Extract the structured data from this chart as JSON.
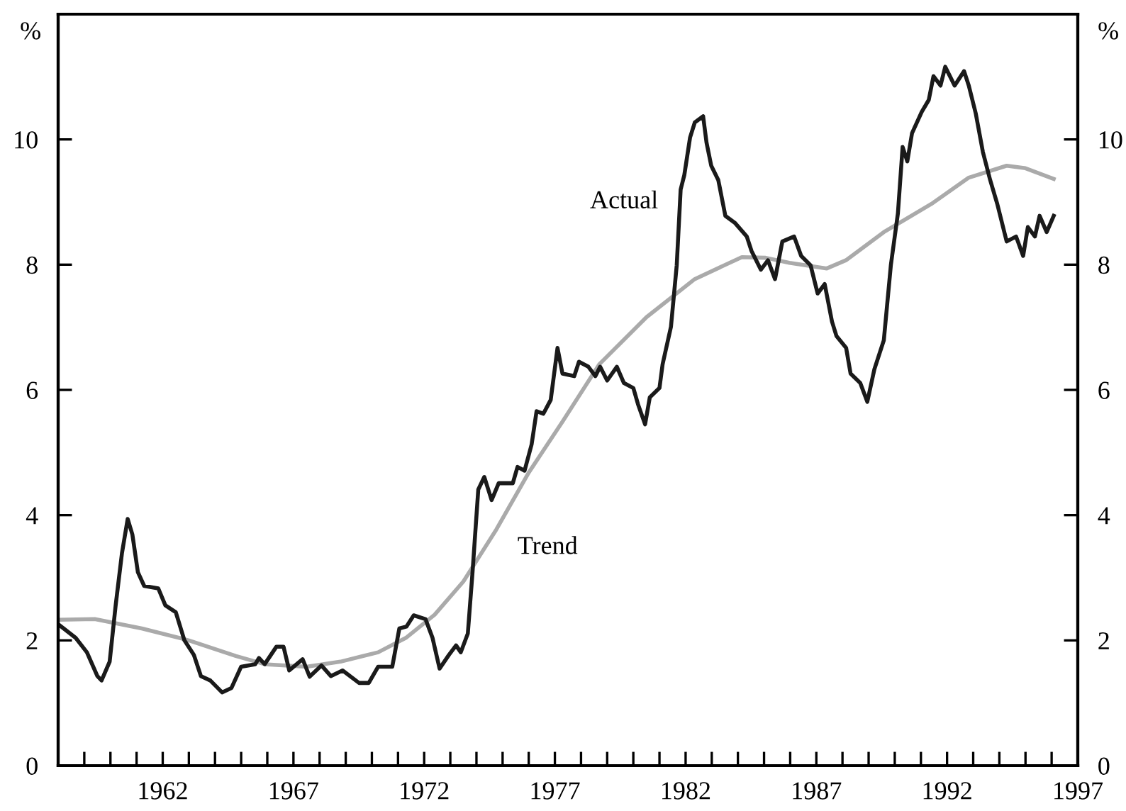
{
  "chart_data": {
    "type": "line",
    "ylabel": "%",
    "y2label": "%",
    "xlim": [
      1958,
      1997
    ],
    "xticks": [
      {
        "value": 1959,
        "label": null
      },
      {
        "value": 1960,
        "label": null
      },
      {
        "value": 1961,
        "label": null
      },
      1962,
      {
        "value": 1963,
        "label": null
      },
      {
        "value": 1964,
        "label": null
      },
      {
        "value": 1965,
        "label": null
      },
      {
        "value": 1966,
        "label": null
      },
      1967,
      {
        "value": 1968,
        "label": null
      },
      {
        "value": 1969,
        "label": null
      },
      {
        "value": 1970,
        "label": null
      },
      {
        "value": 1971,
        "label": null
      },
      1972,
      {
        "value": 1973,
        "label": null
      },
      {
        "value": 1974,
        "label": null
      },
      {
        "value": 1975,
        "label": null
      },
      {
        "value": 1976,
        "label": null
      },
      1977,
      {
        "value": 1978,
        "label": null
      },
      {
        "value": 1979,
        "label": null
      },
      {
        "value": 1980,
        "label": null
      },
      {
        "value": 1981,
        "label": null
      },
      1982,
      {
        "value": 1983,
        "label": null
      },
      {
        "value": 1984,
        "label": null
      },
      {
        "value": 1985,
        "label": null
      },
      {
        "value": 1986,
        "label": null
      },
      1987,
      {
        "value": 1988,
        "label": null
      },
      {
        "value": 1989,
        "label": null
      },
      {
        "value": 1990,
        "label": null
      },
      {
        "value": 1991,
        "label": null
      },
      1992,
      {
        "value": 1993,
        "label": null
      },
      {
        "value": 1994,
        "label": null
      },
      {
        "value": 1995,
        "label": null
      },
      {
        "value": 1996,
        "label": null
      },
      1997
    ],
    "ylim": [
      0,
      12
    ],
    "yticks": [
      0,
      2,
      4,
      6,
      8,
      10
    ],
    "y2lim": [
      0,
      12
    ],
    "y2ticks": [
      0,
      2,
      4,
      6,
      8,
      10
    ],
    "grid": false,
    "legend": false,
    "marker": "none",
    "line_style": "solid",
    "series": [
      {
        "name": "Actual",
        "color": "#1a1a1a",
        "x": [
          1958.0,
          1958.67,
          1959.1,
          1959.5,
          1959.66,
          1959.97,
          1960.2,
          1960.44,
          1960.66,
          1960.84,
          1961.05,
          1961.29,
          1961.83,
          1962.1,
          1962.5,
          1962.83,
          1963.19,
          1963.46,
          1963.82,
          1964.27,
          1964.63,
          1965.0,
          1965.54,
          1965.68,
          1965.9,
          1966.35,
          1966.62,
          1966.84,
          1967.35,
          1967.62,
          1968.07,
          1968.43,
          1968.88,
          1969.51,
          1969.88,
          1970.24,
          1970.78,
          1971.05,
          1971.32,
          1971.6,
          1972.05,
          1972.32,
          1972.59,
          1972.95,
          1973.22,
          1973.4,
          1973.67,
          1973.85,
          1974.07,
          1974.3,
          1974.58,
          1974.85,
          1975.39,
          1975.57,
          1975.84,
          1976.11,
          1976.3,
          1976.56,
          1976.84,
          1977.1,
          1977.29,
          1977.74,
          1977.92,
          1978.28,
          1978.55,
          1978.73,
          1979.0,
          1979.37,
          1979.64,
          1980.0,
          1980.18,
          1980.45,
          1980.63,
          1981.0,
          1981.12,
          1981.44,
          1981.66,
          1981.81,
          1981.95,
          1982.17,
          1982.35,
          1982.67,
          1982.8,
          1982.98,
          1983.25,
          1983.52,
          1983.88,
          1984.34,
          1984.52,
          1984.88,
          1985.15,
          1985.42,
          1985.7,
          1986.15,
          1986.42,
          1986.78,
          1987.05,
          1987.32,
          1987.6,
          1987.77,
          1988.14,
          1988.31,
          1988.68,
          1988.95,
          1989.22,
          1989.58,
          1989.85,
          1990.12,
          1990.3,
          1990.48,
          1990.66,
          1991.03,
          1991.3,
          1991.48,
          1991.75,
          1991.93,
          1992.29,
          1992.65,
          1992.83,
          1993.1,
          1993.37,
          1993.65,
          1993.92,
          1994.28,
          1994.64,
          1994.91,
          1995.09,
          1995.36,
          1995.54,
          1995.81,
          1996.08
        ],
        "values": [
          2.26,
          2.04,
          1.81,
          1.43,
          1.36,
          1.66,
          2.56,
          3.39,
          3.94,
          3.69,
          3.09,
          2.87,
          2.83,
          2.56,
          2.45,
          2.0,
          1.77,
          1.43,
          1.36,
          1.17,
          1.24,
          1.58,
          1.62,
          1.72,
          1.62,
          1.9,
          1.9,
          1.52,
          1.7,
          1.42,
          1.6,
          1.43,
          1.52,
          1.32,
          1.32,
          1.58,
          1.58,
          2.19,
          2.22,
          2.4,
          2.34,
          2.04,
          1.55,
          1.77,
          1.92,
          1.81,
          2.11,
          3.09,
          4.41,
          4.61,
          4.24,
          4.51,
          4.51,
          4.77,
          4.71,
          5.13,
          5.66,
          5.62,
          5.84,
          6.67,
          6.26,
          6.22,
          6.45,
          6.37,
          6.22,
          6.37,
          6.15,
          6.37,
          6.11,
          6.03,
          5.77,
          5.45,
          5.88,
          6.03,
          6.41,
          7.01,
          7.99,
          9.2,
          9.43,
          10.03,
          10.27,
          10.37,
          9.95,
          9.58,
          9.35,
          8.78,
          8.67,
          8.45,
          8.22,
          7.92,
          8.07,
          7.77,
          8.37,
          8.45,
          8.14,
          7.99,
          7.54,
          7.69,
          7.09,
          6.86,
          6.67,
          6.26,
          6.11,
          5.81,
          6.33,
          6.79,
          7.99,
          8.82,
          9.88,
          9.65,
          10.1,
          10.44,
          10.63,
          11.01,
          10.86,
          11.16,
          10.86,
          11.09,
          10.86,
          10.41,
          9.8,
          9.35,
          8.97,
          8.37,
          8.45,
          8.14,
          8.6,
          8.45,
          8.78,
          8.52,
          8.78
        ]
      },
      {
        "name": "Trend",
        "color": "#aaaaaa",
        "x": [
          1958.0,
          1959.4,
          1961.2,
          1963.0,
          1964.8,
          1965.9,
          1967.5,
          1968.8,
          1970.24,
          1971.3,
          1972.4,
          1973.5,
          1974.76,
          1976.0,
          1977.3,
          1978.7,
          1980.5,
          1982.35,
          1984.15,
          1985.06,
          1985.97,
          1987.4,
          1988.13,
          1989.58,
          1991.4,
          1992.83,
          1994.28,
          1995.0,
          1996.08
        ],
        "values": [
          2.33,
          2.34,
          2.19,
          2.0,
          1.75,
          1.62,
          1.58,
          1.66,
          1.81,
          2.04,
          2.41,
          2.94,
          3.77,
          4.68,
          5.5,
          6.41,
          7.16,
          7.77,
          8.12,
          8.11,
          8.03,
          7.94,
          8.07,
          8.52,
          8.97,
          9.39,
          9.58,
          9.54,
          9.37
        ]
      }
    ]
  }
}
